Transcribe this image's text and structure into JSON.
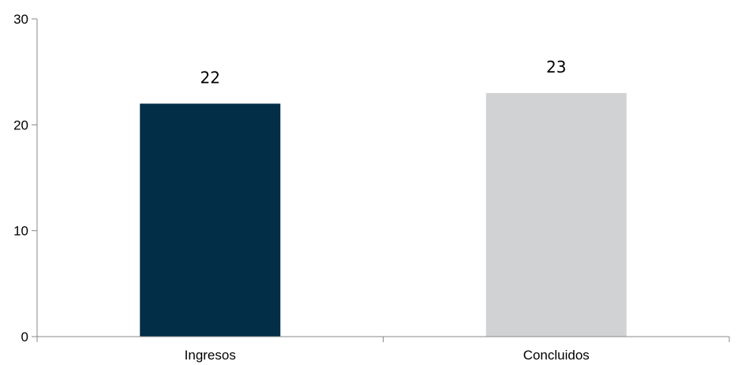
{
  "chart_data": {
    "type": "bar",
    "categories": [
      "Ingresos",
      "Concluidos"
    ],
    "values": [
      22,
      23
    ],
    "data_labels": [
      "22",
      "23"
    ],
    "bar_colors": [
      "#022e48",
      "#d1d2d4"
    ],
    "ylim": [
      0,
      30
    ],
    "y_ticks": [
      0,
      10,
      20,
      30
    ],
    "y_tick_labels": [
      "0",
      "10",
      "20",
      "30"
    ],
    "title": "",
    "xlabel": "",
    "ylabel": "",
    "grid": false,
    "legend": "none",
    "axis_color": "#888888"
  }
}
